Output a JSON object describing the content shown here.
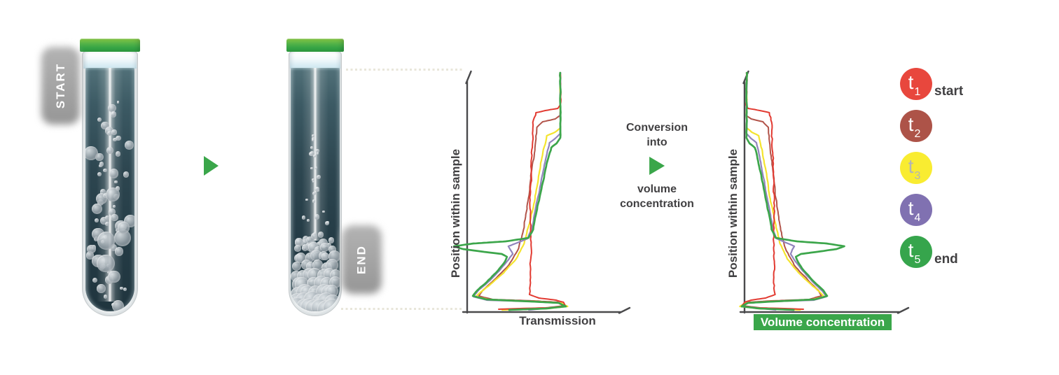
{
  "diagram": {
    "start_badge": "START",
    "end_badge": "END",
    "conversion_text": {
      "line1": "Conversion",
      "line2": "into",
      "line3": "volume",
      "line4": "concentration"
    }
  },
  "charts": {
    "transmission": {
      "ylabel": "Position within sample",
      "xlabel": "Transmission"
    },
    "volume": {
      "ylabel": "Position within sample",
      "xlabel": "Volume concentration"
    }
  },
  "legend": {
    "items": [
      {
        "symbol": "t",
        "sub": "1",
        "note": "start",
        "color": "#e8473d",
        "symbol_color": "#ffffff"
      },
      {
        "symbol": "t",
        "sub": "2",
        "note": "",
        "color": "#ad5348",
        "symbol_color": "#ffffff"
      },
      {
        "symbol": "t",
        "sub": "3",
        "note": "",
        "color": "#f9ec31",
        "symbol_color": "#b2b4b7"
      },
      {
        "symbol": "t",
        "sub": "4",
        "note": "",
        "color": "#8071b1",
        "symbol_color": "#ffffff"
      },
      {
        "symbol": "t",
        "sub": "5",
        "note": "end",
        "color": "#36a54c",
        "symbol_color": "#ffffff"
      }
    ]
  },
  "colors": {
    "accent_green": "#3aa64a",
    "axis": "#4a4a4c",
    "label_text": "#414042",
    "series": {
      "t1": "#e23a31",
      "t2": "#b2544a",
      "t3": "#f4e42e",
      "t4": "#9184bd",
      "t5": "#3ca64b"
    }
  },
  "chart_data": [
    {
      "type": "line",
      "xlabel": "Transmission",
      "ylabel": "Position within sample",
      "numeric_axes": false,
      "legend_position": "right",
      "series": [
        {
          "name": "t1",
          "role": "start"
        },
        {
          "name": "t2"
        },
        {
          "name": "t3"
        },
        {
          "name": "t4"
        },
        {
          "name": "t5",
          "role": "end"
        }
      ]
    },
    {
      "type": "line",
      "xlabel": "Volume concentration",
      "ylabel": "Position within sample",
      "numeric_axes": false,
      "legend_position": "right",
      "series": [
        {
          "name": "t1",
          "role": "start"
        },
        {
          "name": "t2"
        },
        {
          "name": "t3"
        },
        {
          "name": "t4"
        },
        {
          "name": "t5",
          "role": "end"
        }
      ]
    }
  ]
}
